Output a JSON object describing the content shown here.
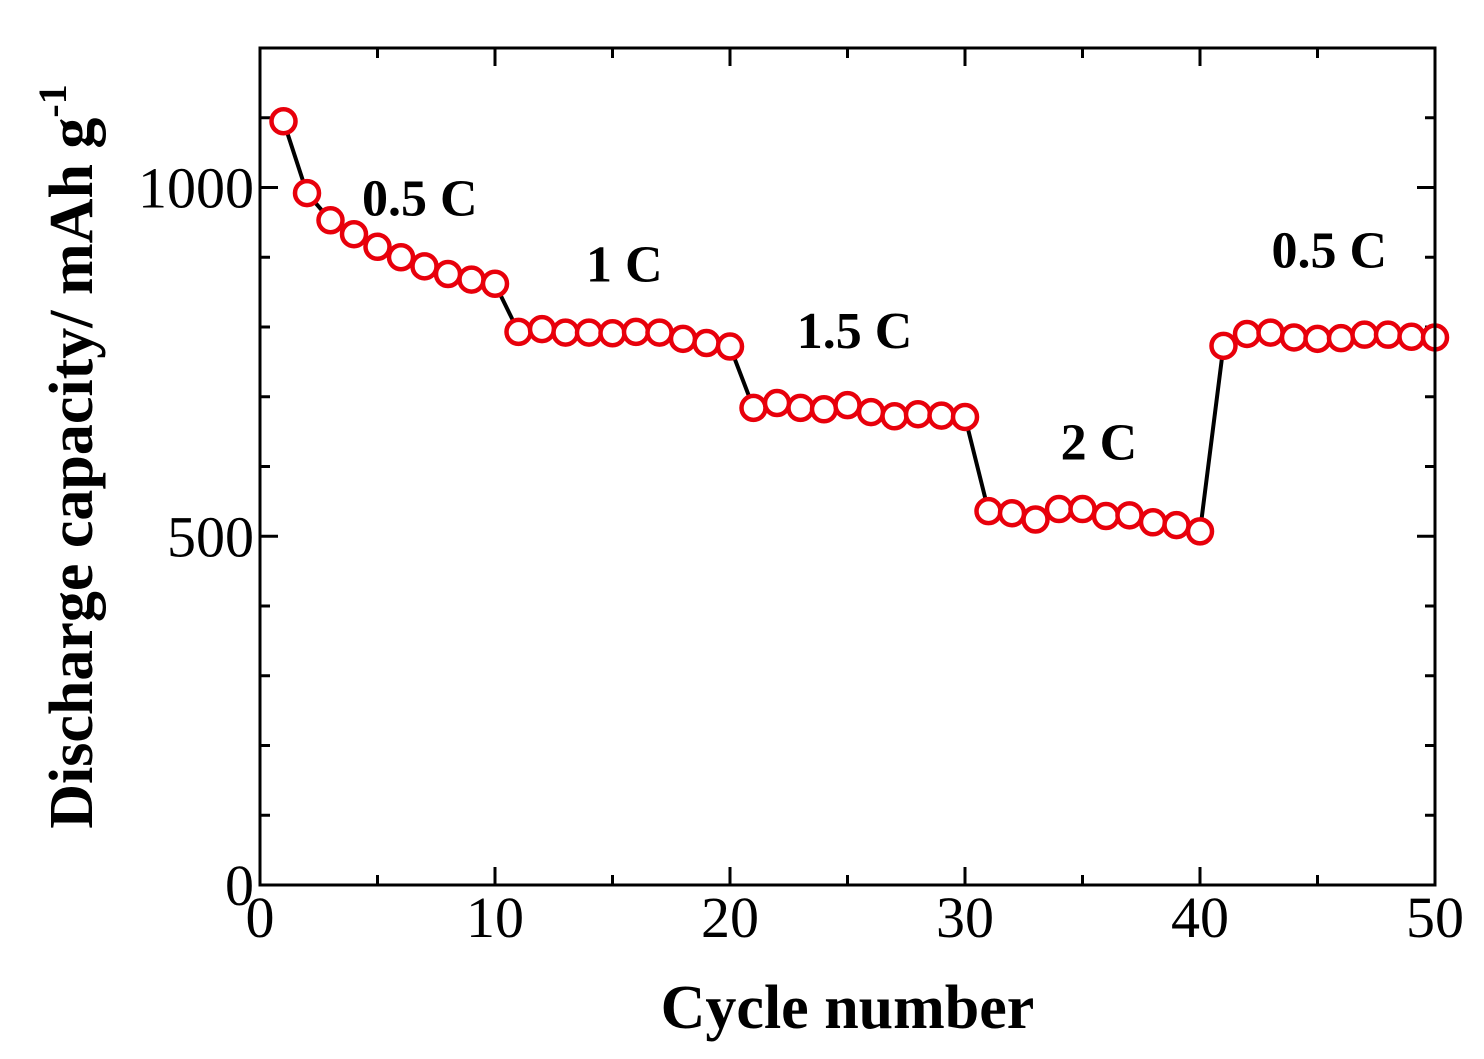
{
  "chart_data": {
    "type": "line",
    "xlabel": "Cycle number",
    "ylabel": "Discharge capacity/ mAh g",
    "ylabel_superscript": "-1",
    "xlim": [
      0,
      50
    ],
    "ylim": [
      0,
      1200
    ],
    "x_ticks": [
      0,
      10,
      20,
      30,
      40,
      50
    ],
    "x_tick_labels": [
      "0",
      "10",
      "20",
      "30",
      "40",
      "50"
    ],
    "x_minor_step": 5,
    "y_ticks": [
      0,
      500,
      1000
    ],
    "y_tick_labels": [
      "0",
      "500",
      "1000"
    ],
    "y_minor_step": 100,
    "grid": false,
    "colors": {
      "marker": "#e8000b",
      "line": "#000000"
    },
    "annotations": [
      {
        "text": "0.5 C",
        "x": 6.8,
        "y": 960
      },
      {
        "text": "1 C",
        "x": 15.5,
        "y": 865
      },
      {
        "text": "1.5 C",
        "x": 25.3,
        "y": 770
      },
      {
        "text": "2 C",
        "x": 35.7,
        "y": 610
      },
      {
        "text": "0.5 C",
        "x": 45.5,
        "y": 885
      }
    ],
    "series": [
      {
        "x": [
          1,
          2,
          3,
          4,
          5,
          6,
          7,
          8,
          9,
          10,
          11,
          12,
          13,
          14,
          15,
          16,
          17,
          18,
          19,
          20,
          21,
          22,
          23,
          24,
          25,
          26,
          27,
          28,
          29,
          30,
          31,
          32,
          33,
          34,
          35,
          36,
          37,
          38,
          39,
          40,
          41,
          42,
          43,
          44,
          45,
          46,
          47,
          48,
          49,
          50
        ],
        "values": [
          1095,
          992,
          953,
          933,
          915,
          900,
          887,
          876,
          868,
          862,
          793,
          797,
          792,
          792,
          791,
          793,
          792,
          783,
          777,
          772,
          684,
          691,
          684,
          682,
          688,
          678,
          672,
          675,
          673,
          671,
          536,
          533,
          524,
          539,
          539,
          529,
          530,
          520,
          516,
          507,
          773,
          790,
          792,
          785,
          783,
          784,
          789,
          789,
          786,
          785
        ]
      }
    ]
  }
}
